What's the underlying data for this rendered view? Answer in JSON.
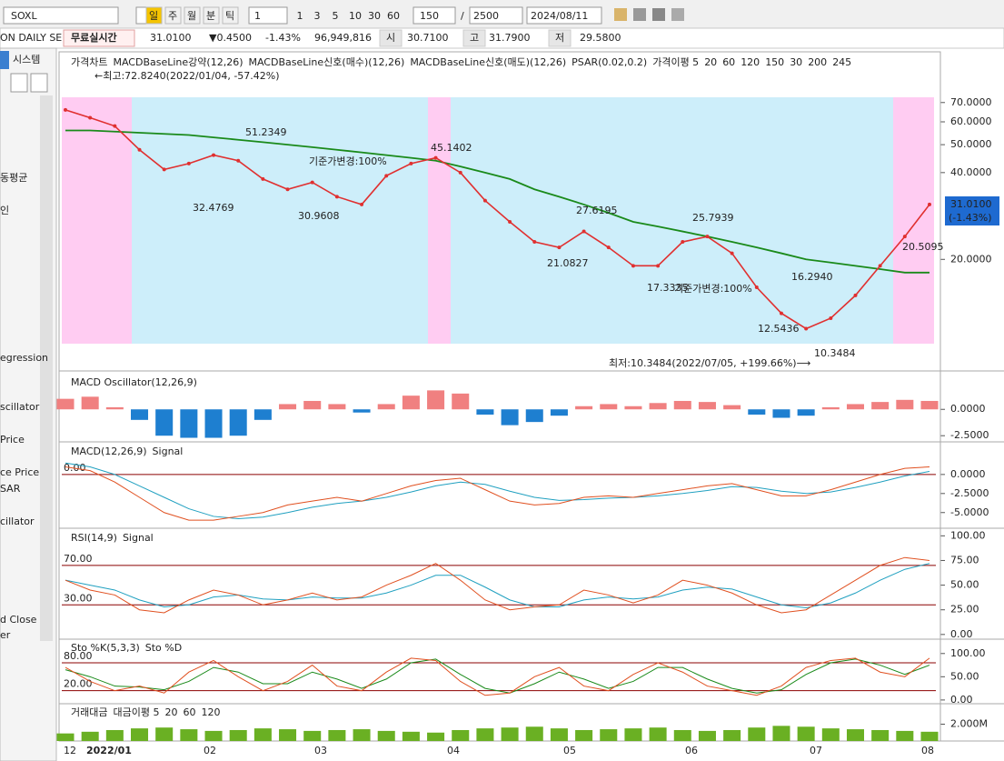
{
  "toolbar": {
    "symbol": "SOXL",
    "periods": [
      "일",
      "주",
      "월",
      "분",
      "틱"
    ],
    "unit": "1",
    "intervals": [
      "1",
      "3",
      "5",
      "10",
      "30",
      "60"
    ],
    "count": "150",
    "separator": "/",
    "max_count": "2500",
    "date": "2024/08/11"
  },
  "quote_bar": {
    "name": "ON DAILY SE",
    "realtime": "무료실시간",
    "price": "31.0100",
    "change": "▼0.4500",
    "change_pct": "-1.43%",
    "volume": "96,949,816",
    "open_label": "시",
    "open": "30.7100",
    "high_label": "고",
    "high": "31.7900",
    "low_label": "저",
    "low": "29.5800"
  },
  "sidebar": {
    "tab": "시스템",
    "items": [
      "동평균",
      "인",
      "egression",
      "scillator",
      "Price",
      "ce Price",
      "SAR",
      "cillator",
      "d Close",
      "er"
    ]
  },
  "chart": {
    "x_labels": [
      "12",
      "2022/01",
      "02",
      "03",
      "04",
      "05",
      "06",
      "07",
      "08"
    ],
    "price": {
      "title": "가격차트",
      "legend": [
        {
          "text": "MACDBaseLine강약(12,26)",
          "color": "#f2a7cf"
        },
        {
          "text": "MACDBaseLine신호(매수)(12,26)",
          "color": "#333333"
        },
        {
          "text": "MACDBaseLine신호(매도)(12,26)",
          "color": "#333333"
        },
        {
          "text": "PSAR(0.02,0.2)",
          "color": "#333333"
        },
        {
          "text": "가격이평 5",
          "color": "#e86a8a"
        },
        {
          "text": "20",
          "color": "#e03030"
        },
        {
          "text": "60",
          "color": "#1a8a1a"
        },
        {
          "text": "120",
          "color": "#8a1a4a"
        },
        {
          "text": "150",
          "color": "#5ab020"
        },
        {
          "text": "30",
          "color": "#f08080"
        },
        {
          "text": "200",
          "color": "#60a0e0"
        },
        {
          "text": "245",
          "color": "#9a60d0"
        }
      ],
      "high_note": "←최고:72.8240(2022/01/04, -57.42%)",
      "low_note": "최저:10.3484(2022/07/05, +199.66%)⟶",
      "labels": [
        "51.2349",
        "45.1402",
        "32.4769",
        "30.9608",
        "27.6195",
        "25.7939",
        "21.0827",
        "17.3335",
        "16.2940",
        "12.5436",
        "10.3484",
        "20.5095"
      ],
      "base_notes": [
        "기준가변경:100%",
        "기준가변경:100%"
      ],
      "last_price": "31.0100",
      "last_change": "(-1.43%)",
      "yscale": "log",
      "ylim": [
        10.2,
        73
      ],
      "yticks": [
        {
          "value": 70,
          "label": "70.0000"
        },
        {
          "value": 60,
          "label": "60.0000"
        },
        {
          "value": 50,
          "label": "50.0000"
        },
        {
          "value": 40,
          "label": "40.0000"
        },
        {
          "value": 20,
          "label": "20.0000"
        }
      ],
      "close": [
        66,
        62,
        58,
        48,
        41,
        43,
        46,
        44,
        38,
        35,
        37,
        33,
        31,
        39,
        43,
        45,
        40,
        32,
        27,
        23,
        22,
        25,
        22,
        19,
        19,
        23,
        24,
        21,
        16,
        13,
        11.5,
        12.5,
        15,
        19,
        24,
        31
      ],
      "close_color": "#e03030",
      "ma120": [
        56,
        56,
        55.5,
        55,
        54.5,
        54,
        53,
        52,
        51,
        50,
        49,
        48,
        47,
        46,
        45,
        44,
        42,
        40,
        38,
        35,
        33,
        31,
        29,
        27,
        26,
        25,
        24,
        23,
        22,
        21,
        20,
        19.5,
        19,
        18.5,
        18,
        18
      ],
      "ma120_color": "#1a8a1a"
    },
    "macd_osc": {
      "title": "MACD Oscillator(12,26,9)",
      "ylim": [
        -3.0,
        3.3
      ],
      "yticks": [
        {
          "value": 0,
          "label": "0.0000"
        },
        {
          "value": -2.5,
          "label": "-2.5000"
        }
      ],
      "values": [
        1,
        1.2,
        0.2,
        -1,
        -2.5,
        -2.7,
        -2.7,
        -2.5,
        -1,
        0.5,
        0.8,
        0.5,
        -0.3,
        0.5,
        1.3,
        1.8,
        1.5,
        -0.5,
        -1.5,
        -1.2,
        -0.6,
        0.3,
        0.5,
        0.3,
        0.6,
        0.8,
        0.7,
        0.4,
        -0.5,
        -0.8,
        -0.6,
        0.2,
        0.5,
        0.7,
        0.9,
        0.8
      ],
      "up_color": "#f08080",
      "down_color": "#1e7fd0"
    },
    "macd": {
      "title": "MACD(12,26,9)",
      "signal_title": "Signal",
      "ylim": [
        -6.7,
        3.8
      ],
      "yticks": [
        {
          "value": 0,
          "label": "0.0000"
        },
        {
          "value": -2.5,
          "label": "-2.5000"
        },
        {
          "value": -5,
          "label": "-5.0000"
        }
      ],
      "levels": [
        {
          "value": 0,
          "label": "0.00"
        }
      ],
      "line": [
        1,
        0.5,
        -1,
        -3,
        -5,
        -6,
        -6,
        -5.5,
        -5,
        -4,
        -3.5,
        -3,
        -3.5,
        -2.5,
        -1.5,
        -0.8,
        -0.5,
        -2,
        -3.5,
        -4,
        -3.8,
        -3,
        -2.8,
        -3,
        -2.5,
        -2,
        -1.5,
        -1.2,
        -2,
        -2.8,
        -2.8,
        -2,
        -1,
        0,
        0.8,
        1
      ],
      "line_color": "#e05020",
      "signal": [
        1.5,
        1,
        0,
        -1.5,
        -3,
        -4.5,
        -5.5,
        -5.8,
        -5.6,
        -5,
        -4.3,
        -3.8,
        -3.5,
        -3,
        -2.3,
        -1.5,
        -1,
        -1.3,
        -2.2,
        -3,
        -3.4,
        -3.3,
        -3.1,
        -3,
        -2.8,
        -2.5,
        -2.1,
        -1.6,
        -1.7,
        -2.2,
        -2.5,
        -2.3,
        -1.7,
        -1,
        -0.2,
        0.4
      ],
      "signal_color": "#20a0c0"
    },
    "rsi": {
      "title": "RSI(14,9)",
      "signal_title": "Signal",
      "ylim": [
        -2,
        104
      ],
      "yticks": [
        {
          "value": 100,
          "label": "100.00"
        },
        {
          "value": 75,
          "label": "75.00"
        },
        {
          "value": 50,
          "label": "50.00"
        },
        {
          "value": 25,
          "label": "25.00"
        },
        {
          "value": 0,
          "label": "0.00"
        }
      ],
      "levels": [
        {
          "value": 70,
          "label": "70.00"
        },
        {
          "value": 30,
          "label": "30.00"
        }
      ],
      "line": [
        55,
        45,
        40,
        25,
        22,
        35,
        45,
        40,
        30,
        35,
        42,
        35,
        38,
        50,
        60,
        72,
        55,
        35,
        25,
        28,
        30,
        45,
        40,
        32,
        40,
        55,
        50,
        42,
        30,
        22,
        25,
        40,
        55,
        70,
        78,
        75
      ],
      "line_color": "#e05020",
      "signal": [
        55,
        50,
        45,
        35,
        28,
        30,
        38,
        40,
        36,
        35,
        38,
        37,
        37,
        42,
        50,
        60,
        60,
        48,
        35,
        28,
        28,
        35,
        38,
        36,
        38,
        45,
        48,
        46,
        38,
        30,
        27,
        32,
        42,
        55,
        66,
        72
      ],
      "signal_color": "#20a0c0"
    },
    "sto": {
      "title": "Sto %K(5,3,3)",
      "signal_title": "Sto %D",
      "ylim": [
        -10,
        125
      ],
      "yticks": [
        {
          "value": 100,
          "label": "100.00"
        },
        {
          "value": 50,
          "label": "50.00"
        },
        {
          "value": 0,
          "label": "0.00"
        }
      ],
      "levels": [
        {
          "value": 80,
          "label": "80.00"
        },
        {
          "value": 20,
          "label": "20.00"
        }
      ],
      "line": [
        70,
        40,
        20,
        30,
        15,
        60,
        85,
        50,
        20,
        40,
        75,
        30,
        20,
        60,
        90,
        85,
        40,
        10,
        15,
        50,
        70,
        30,
        20,
        55,
        80,
        60,
        30,
        20,
        10,
        30,
        70,
        85,
        90,
        60,
        50,
        90
      ],
      "line_color": "#e05020",
      "signal": [
        65,
        50,
        30,
        28,
        22,
        40,
        70,
        60,
        35,
        35,
        60,
        45,
        25,
        45,
        80,
        88,
        55,
        25,
        15,
        35,
        60,
        45,
        25,
        40,
        70,
        70,
        45,
        25,
        15,
        22,
        55,
        80,
        88,
        75,
        55,
        75
      ],
      "signal_color": "#1a8a1a"
    },
    "volume": {
      "title": "거래대금",
      "legend": [
        {
          "text": "대금이평 5",
          "color": "#1a8a1a"
        },
        {
          "text": "20",
          "color": "#1e7fd0"
        },
        {
          "text": "60",
          "color": "#1a8a1a"
        },
        {
          "text": "120",
          "color": "#6a1a6a"
        }
      ],
      "ylim": [
        0,
        4000000
      ],
      "yticks": [
        {
          "value": 2000000,
          "label": "2.000M"
        }
      ],
      "values": [
        900000,
        1100000,
        1300000,
        1500000,
        1600000,
        1400000,
        1200000,
        1300000,
        1500000,
        1400000,
        1200000,
        1300000,
        1400000,
        1200000,
        1100000,
        1000000,
        1300000,
        1500000,
        1600000,
        1700000,
        1500000,
        1300000,
        1400000,
        1500000,
        1600000,
        1300000,
        1200000,
        1300000,
        1600000,
        1800000,
        1700000,
        1500000,
        1400000,
        1300000,
        1200000,
        1100000
      ],
      "color": "#6ab023"
    }
  }
}
